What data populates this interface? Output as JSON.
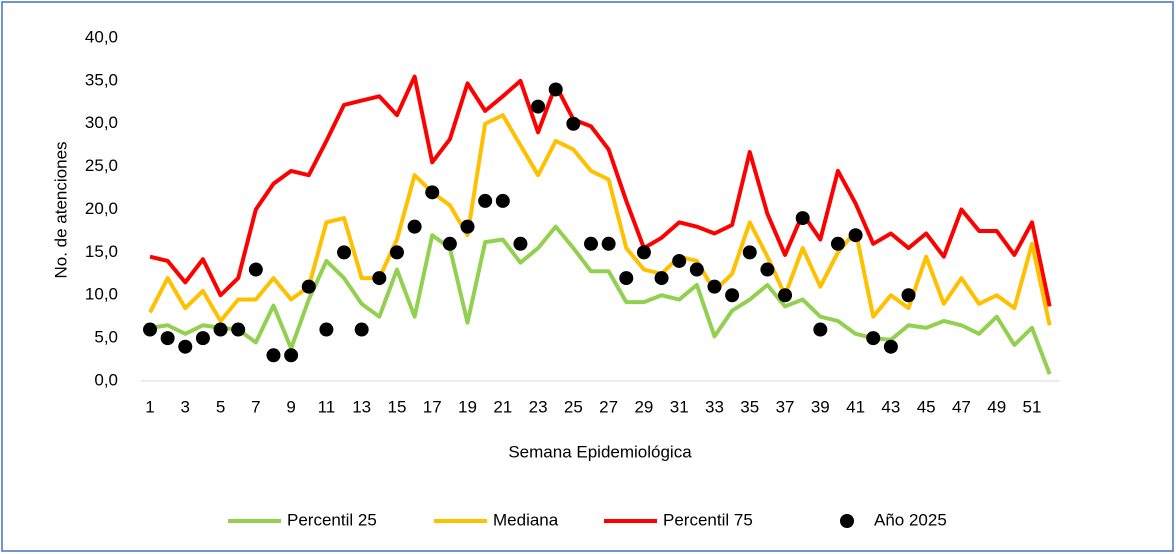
{
  "chart_data": {
    "type": "line",
    "y_label": "No. de atenciones",
    "x_label": "Semana Epidemiológica",
    "categories": [
      "1",
      null,
      "3",
      null,
      "5",
      null,
      "7",
      null,
      "9",
      null,
      "11",
      null,
      "13",
      null,
      "15",
      null,
      "17",
      null,
      "19",
      null,
      "21",
      null,
      "23",
      null,
      "25",
      null,
      "27",
      null,
      "29",
      null,
      "31",
      null,
      "33",
      null,
      "35",
      null,
      "37",
      null,
      "39",
      null,
      "41",
      null,
      "43",
      null,
      "45",
      null,
      "47",
      null,
      "49",
      null,
      "51",
      null
    ],
    "ylim": [
      0,
      40
    ],
    "yticks": [
      {
        "value": 0,
        "label": "0,0"
      },
      {
        "value": 5,
        "label": "5,0"
      },
      {
        "value": 10,
        "label": "10,0"
      },
      {
        "value": 15,
        "label": "15,0"
      },
      {
        "value": 20,
        "label": "20,0"
      },
      {
        "value": 25,
        "label": "25,0"
      },
      {
        "value": 30,
        "label": "30,0"
      },
      {
        "value": 35,
        "label": "35,0"
      },
      {
        "value": 40,
        "label": "40,0"
      }
    ],
    "grid": false,
    "legend": "bottom",
    "series": [
      {
        "name": "Percentil 25",
        "color": "#92d050",
        "mode": "line",
        "values": [
          6.2,
          6.5,
          5.5,
          6.5,
          6.2,
          6.0,
          4.5,
          8.8,
          3.8,
          9.5,
          14.0,
          12.0,
          9.0,
          7.5,
          13.0,
          7.5,
          17.0,
          15.5,
          6.8,
          16.2,
          16.5,
          13.8,
          15.5,
          18.0,
          15.5,
          12.8,
          12.8,
          9.2,
          9.2,
          10.0,
          9.5,
          11.2,
          5.2,
          8.2,
          9.5,
          11.2,
          8.7,
          9.5,
          7.5,
          7.0,
          5.5,
          5.0,
          4.8,
          6.5,
          6.2,
          7.0,
          6.5,
          5.5,
          7.5,
          4.2,
          6.2,
          0.8
        ]
      },
      {
        "name": "Mediana",
        "color": "#ffc000",
        "mode": "line",
        "values": [
          8.0,
          12.0,
          8.5,
          10.5,
          7.0,
          9.5,
          9.5,
          12.0,
          9.5,
          11.0,
          18.5,
          19.0,
          12.0,
          12.0,
          16.5,
          24.0,
          22.0,
          20.5,
          17.0,
          30.0,
          31.0,
          27.5,
          24.0,
          28.0,
          27.0,
          24.5,
          23.5,
          15.5,
          13.0,
          12.5,
          14.5,
          14.0,
          10.5,
          12.5,
          18.5,
          14.5,
          10.0,
          15.5,
          11.0,
          15.0,
          17.5,
          7.5,
          10.0,
          8.5,
          14.5,
          9.0,
          12.0,
          9.0,
          10.0,
          8.5,
          16.0,
          6.5
        ]
      },
      {
        "name": "Percentil 75",
        "color": "#ff0000",
        "mode": "line",
        "values": [
          14.5,
          14.0,
          11.5,
          14.2,
          10.0,
          12.0,
          20.0,
          23.0,
          24.5,
          24.0,
          28.0,
          32.2,
          32.7,
          33.2,
          31.0,
          35.5,
          25.5,
          28.2,
          34.7,
          31.5,
          33.2,
          35.0,
          29.0,
          34.5,
          30.5,
          29.7,
          27.0,
          21.0,
          15.5,
          16.7,
          18.5,
          18.0,
          17.2,
          18.2,
          26.7,
          19.5,
          14.7,
          19.5,
          16.5,
          24.5,
          20.7,
          16.0,
          17.2,
          15.5,
          17.2,
          14.5,
          20.0,
          17.5,
          17.5,
          14.7,
          18.5,
          8.7
        ]
      },
      {
        "name": "Año 2025",
        "color": "#000000",
        "mode": "markers",
        "values": [
          6,
          5,
          4,
          5,
          6,
          6,
          13,
          3,
          3,
          11,
          6,
          15,
          6,
          12,
          15,
          18,
          22,
          16,
          18,
          21,
          21,
          16,
          32,
          34,
          30,
          16,
          16,
          12,
          15,
          12,
          14,
          13,
          11,
          10,
          15,
          13,
          10,
          19,
          6,
          16,
          17,
          5,
          4,
          10,
          null,
          null,
          null,
          null,
          null,
          null,
          null,
          null
        ]
      }
    ]
  }
}
